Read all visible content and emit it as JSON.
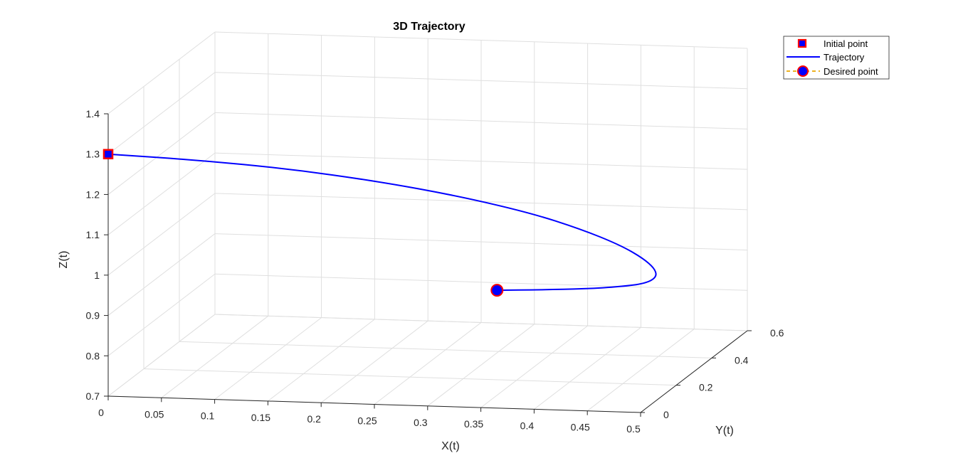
{
  "chart_data": {
    "type": "line",
    "projection": "3d",
    "title": "3D Trajectory",
    "xlabel": "X(t)",
    "ylabel": "Y(t)",
    "zlabel": "Z(t)",
    "xlim": [
      0,
      0.5
    ],
    "ylim": [
      0,
      0.6
    ],
    "zlim": [
      0.7,
      1.4
    ],
    "xticks": [
      "0",
      "0.05",
      "0.1",
      "0.15",
      "0.2",
      "0.25",
      "0.3",
      "0.35",
      "0.4",
      "0.45",
      "0.5"
    ],
    "yticks": [
      "0",
      "0.2",
      "0.4",
      "0.6"
    ],
    "zticks": [
      "0.7",
      "0.8",
      "0.9",
      "1",
      "1.1",
      "1.2",
      "1.3",
      "1.4"
    ],
    "grid": true,
    "legend_position": "top-right",
    "series": [
      {
        "name": "Initial point",
        "marker": "square",
        "color": "#0000ff",
        "edge_color": "#ff0000",
        "points": [
          {
            "x": 0,
            "y": 0,
            "z": 1.3
          }
        ]
      },
      {
        "name": "Trajectory",
        "line": "solid",
        "color": "#0000ff",
        "points": [
          {
            "x": 0.0,
            "y": 0.0,
            "z": 1.3
          },
          {
            "x": 0.08,
            "y": 0.02,
            "z": 1.285
          },
          {
            "x": 0.16,
            "y": 0.05,
            "z": 1.26
          },
          {
            "x": 0.24,
            "y": 0.08,
            "z": 1.225
          },
          {
            "x": 0.31,
            "y": 0.12,
            "z": 1.18
          },
          {
            "x": 0.37,
            "y": 0.16,
            "z": 1.13
          },
          {
            "x": 0.41,
            "y": 0.2,
            "z": 1.08
          },
          {
            "x": 0.44,
            "y": 0.24,
            "z": 1.03
          },
          {
            "x": 0.455,
            "y": 0.28,
            "z": 0.985
          },
          {
            "x": 0.46,
            "y": 0.32,
            "z": 0.945
          },
          {
            "x": 0.455,
            "y": 0.36,
            "z": 0.91
          },
          {
            "x": 0.44,
            "y": 0.385,
            "z": 0.885
          },
          {
            "x": 0.415,
            "y": 0.4,
            "z": 0.87
          },
          {
            "x": 0.38,
            "y": 0.405,
            "z": 0.86
          },
          {
            "x": 0.34,
            "y": 0.4,
            "z": 0.856
          },
          {
            "x": 0.3,
            "y": 0.39,
            "z": 0.855
          }
        ]
      },
      {
        "name": "Desired point",
        "marker": "circle",
        "line": "dashed",
        "color": "#0000ff",
        "edge_color": "#ff0000",
        "line_color": "#edb120",
        "points": [
          {
            "x": 0.3,
            "y": 0.39,
            "z": 0.855
          }
        ]
      }
    ]
  }
}
